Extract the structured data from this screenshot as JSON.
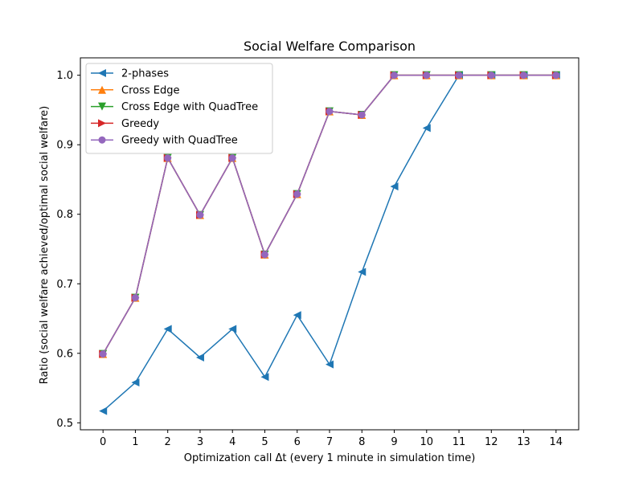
{
  "chart_data": {
    "type": "line",
    "title": "Social Welfare Comparison",
    "xlabel": "Optimization call Δt (every 1 minute in simulation time)",
    "ylabel": "Ratio (social welfare achieved/optimal social welfare)",
    "xlim": [
      -0.7,
      14.7
    ],
    "ylim": [
      0.49,
      1.025
    ],
    "xticks": [
      0,
      1,
      2,
      3,
      4,
      5,
      6,
      7,
      8,
      9,
      10,
      11,
      12,
      13,
      14
    ],
    "xtick_labels": [
      "0",
      "1",
      "2",
      "3",
      "4",
      "5",
      "6",
      "7",
      "8",
      "9",
      "10",
      "11",
      "12",
      "13",
      "14"
    ],
    "yticks": [
      0.5,
      0.6,
      0.7,
      0.8,
      0.9,
      1.0
    ],
    "ytick_labels": [
      "0.5",
      "0.6",
      "0.7",
      "0.8",
      "0.9",
      "1.0"
    ],
    "grid": false,
    "legend_position": "upper-left",
    "x": [
      0,
      1,
      2,
      3,
      4,
      5,
      6,
      7,
      8,
      9,
      10,
      11,
      12,
      13,
      14
    ],
    "series": [
      {
        "name": "2-phases",
        "color": "#1f77b4",
        "marker": "triangle-left",
        "values": [
          0.517,
          0.558,
          0.635,
          0.594,
          0.635,
          0.566,
          0.655,
          0.584,
          0.717,
          0.84,
          0.924,
          1.0,
          1.0,
          1.0,
          1.0
        ]
      },
      {
        "name": "Cross Edge",
        "color": "#ff7f0e",
        "marker": "triangle-up",
        "values": [
          0.599,
          0.68,
          0.881,
          0.799,
          0.881,
          0.742,
          0.829,
          0.948,
          0.943,
          1.0,
          1.0,
          1.0,
          1.0,
          1.0,
          1.0
        ]
      },
      {
        "name": "Cross Edge with QuadTree",
        "color": "#2ca02c",
        "marker": "triangle-down",
        "values": [
          0.599,
          0.68,
          0.881,
          0.799,
          0.881,
          0.742,
          0.829,
          0.948,
          0.943,
          1.0,
          1.0,
          1.0,
          1.0,
          1.0,
          1.0
        ]
      },
      {
        "name": "Greedy",
        "color": "#d62728",
        "marker": "triangle-right",
        "values": [
          0.599,
          0.68,
          0.881,
          0.799,
          0.881,
          0.742,
          0.829,
          0.948,
          0.943,
          1.0,
          1.0,
          1.0,
          1.0,
          1.0,
          1.0
        ]
      },
      {
        "name": "Greedy with QuadTree",
        "color": "#9467bd",
        "marker": "circle",
        "values": [
          0.599,
          0.68,
          0.881,
          0.799,
          0.881,
          0.742,
          0.829,
          0.948,
          0.943,
          1.0,
          1.0,
          1.0,
          1.0,
          1.0,
          1.0
        ]
      }
    ]
  }
}
